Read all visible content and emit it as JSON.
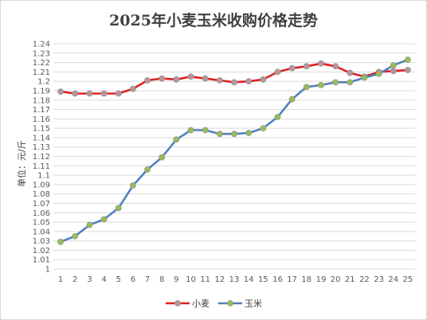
{
  "chart_data": {
    "type": "line",
    "title": "2025年小麦玉米收购价格走势",
    "ylabel": "单位：元/斤",
    "xlabel": "",
    "x": [
      1,
      2,
      3,
      4,
      5,
      6,
      7,
      8,
      9,
      10,
      11,
      12,
      13,
      14,
      15,
      16,
      17,
      18,
      19,
      20,
      21,
      22,
      23,
      24,
      25
    ],
    "ylim": [
      1,
      1.24
    ],
    "yticks": [
      "1",
      "1.01",
      "1.02",
      "1.03",
      "1.04",
      "1.05",
      "1.06",
      "1.07",
      "1.08",
      "1.09",
      "1.1",
      "1.11",
      "1.12",
      "1.13",
      "1.14",
      "1.15",
      "1.16",
      "1.17",
      "1.18",
      "1.19",
      "1.2",
      "1.21",
      "1.22",
      "1.23",
      "1.24"
    ],
    "grid": true,
    "legend_position": "bottom",
    "series": [
      {
        "name": "小麦",
        "color": "#e02020",
        "marker_color": "#b7959a",
        "values": [
          1.189,
          1.187,
          1.187,
          1.187,
          1.187,
          1.192,
          1.201,
          1.203,
          1.202,
          1.205,
          1.203,
          1.201,
          1.199,
          1.2,
          1.202,
          1.21,
          1.214,
          1.216,
          1.219,
          1.216,
          1.209,
          1.205,
          1.21,
          1.211,
          1.212
        ]
      },
      {
        "name": "玉米",
        "color": "#4f81bd",
        "marker_color": "#9bbb59",
        "values": [
          1.029,
          1.035,
          1.047,
          1.053,
          1.065,
          1.089,
          1.106,
          1.119,
          1.138,
          1.148,
          1.148,
          1.144,
          1.144,
          1.145,
          1.15,
          1.162,
          1.181,
          1.194,
          1.196,
          1.199,
          1.199,
          1.204,
          1.208,
          1.217,
          1.223
        ]
      }
    ]
  }
}
